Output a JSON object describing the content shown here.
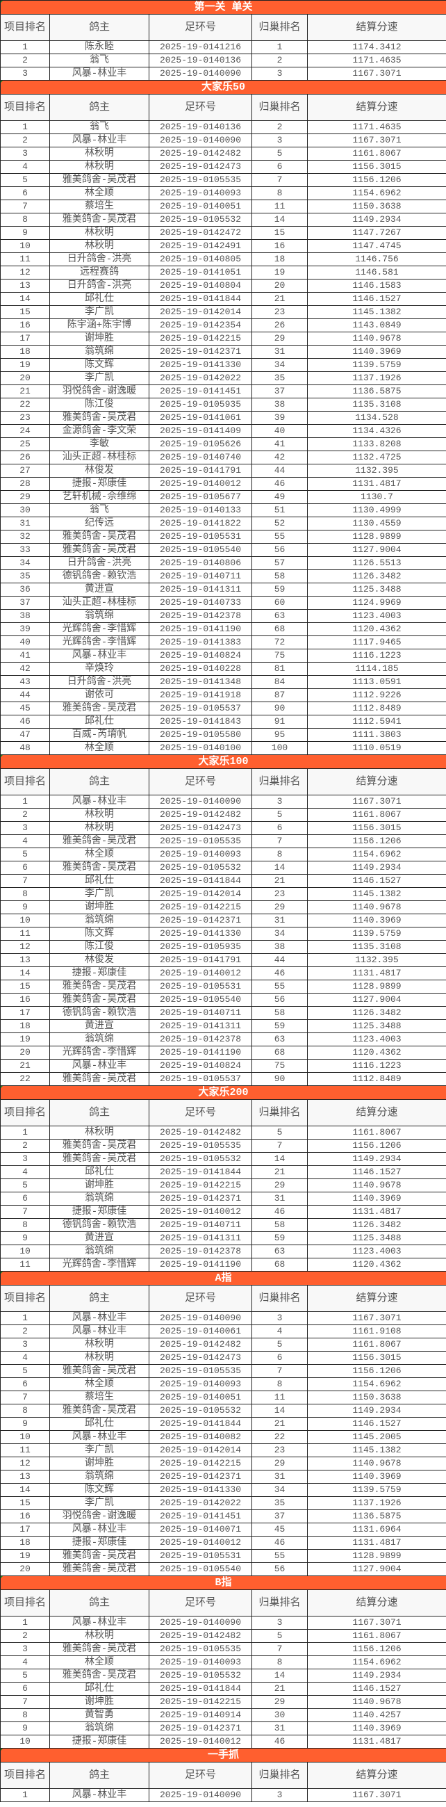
{
  "headers": [
    "项目排名",
    "鸽主",
    "足环号",
    "归巢排名",
    "结算分速"
  ],
  "colors": {
    "section_bar": "#ff5f2f",
    "header_bg": "#f8f8f8",
    "text": "#555555"
  },
  "sections": [
    {
      "title": "第一关 单关",
      "rows": [
        [
          "1",
          "陈永睦",
          "2025-19-0141216",
          "1",
          "1174.3412"
        ],
        [
          "2",
          "翁飞",
          "2025-19-0140136",
          "2",
          "1171.4635"
        ],
        [
          "3",
          "风暴-林业丰",
          "2025-19-0140090",
          "3",
          "1167.3071"
        ]
      ]
    },
    {
      "title": "大家乐50",
      "rows": [
        [
          "1",
          "翁飞",
          "2025-19-0140136",
          "2",
          "1171.4635"
        ],
        [
          "2",
          "风暴-林业丰",
          "2025-19-0140090",
          "3",
          "1167.3071"
        ],
        [
          "3",
          "林秋明",
          "2025-19-0142482",
          "5",
          "1161.8067"
        ],
        [
          "4",
          "林秋明",
          "2025-19-0142473",
          "6",
          "1156.3015"
        ],
        [
          "5",
          "雅美鸽舍-吴茂君",
          "2025-19-0105535",
          "7",
          "1156.1206"
        ],
        [
          "6",
          "林全顺",
          "2025-19-0140093",
          "8",
          "1154.6962"
        ],
        [
          "7",
          "蔡培生",
          "2025-19-0140051",
          "11",
          "1150.3638"
        ],
        [
          "8",
          "雅美鸽舍-吴茂君",
          "2025-19-0105532",
          "14",
          "1149.2934"
        ],
        [
          "9",
          "林秋明",
          "2025-19-0142472",
          "15",
          "1147.7267"
        ],
        [
          "10",
          "林秋明",
          "2025-19-0142491",
          "16",
          "1147.4745"
        ],
        [
          "11",
          "日升鸽舍-洪亮",
          "2025-19-0140805",
          "18",
          "1146.756"
        ],
        [
          "12",
          "远程赛鸽",
          "2025-19-0141051",
          "19",
          "1146.581"
        ],
        [
          "13",
          "日升鸽舍-洪亮",
          "2025-19-0140804",
          "20",
          "1146.1583"
        ],
        [
          "14",
          "邱礼仕",
          "2025-19-0141844",
          "21",
          "1146.1527"
        ],
        [
          "15",
          "李广凯",
          "2025-19-0142014",
          "23",
          "1145.1382"
        ],
        [
          "16",
          "陈宇涵+陈宇博",
          "2025-19-0142354",
          "26",
          "1143.0849"
        ],
        [
          "17",
          "谢坤胜",
          "2025-19-0142215",
          "29",
          "1140.9678"
        ],
        [
          "18",
          "翁筑绵",
          "2025-19-0142371",
          "31",
          "1140.3969"
        ],
        [
          "19",
          "陈文辉",
          "2025-19-0141330",
          "34",
          "1139.5759"
        ],
        [
          "20",
          "李广凯",
          "2025-19-0142022",
          "35",
          "1137.1926"
        ],
        [
          "21",
          "羽悦鸽舍-谢逸暖",
          "2025-19-0141451",
          "37",
          "1136.5875"
        ],
        [
          "22",
          "陈江俊",
          "2025-19-0105935",
          "38",
          "1135.3108"
        ],
        [
          "23",
          "雅美鸽舍-吴茂君",
          "2025-19-0141061",
          "39",
          "1134.528"
        ],
        [
          "24",
          "金源鸽舍-李文荣",
          "2025-19-0141409",
          "40",
          "1134.4326"
        ],
        [
          "25",
          "李敏",
          "2025-19-0105626",
          "41",
          "1133.8208"
        ],
        [
          "26",
          "汕头正超-林桂标",
          "2025-19-0140740",
          "42",
          "1132.4725"
        ],
        [
          "27",
          "林俊发",
          "2025-19-0141791",
          "44",
          "1132.395"
        ],
        [
          "28",
          "捷报-郑康佳",
          "2025-19-0140012",
          "46",
          "1131.4817"
        ],
        [
          "29",
          "艺轩机械-佘维绵",
          "2025-19-0105677",
          "49",
          "1130.7"
        ],
        [
          "30",
          "翁飞",
          "2025-19-0140133",
          "51",
          "1130.4999"
        ],
        [
          "31",
          "纪传远",
          "2025-19-0141822",
          "52",
          "1130.4559"
        ],
        [
          "32",
          "雅美鸽舍-吴茂君",
          "2025-19-0105531",
          "55",
          "1128.9899"
        ],
        [
          "33",
          "雅美鸽舍-吴茂君",
          "2025-19-0105540",
          "56",
          "1127.9004"
        ],
        [
          "34",
          "日升鸽舍-洪亮",
          "2025-19-0140806",
          "57",
          "1126.5513"
        ],
        [
          "35",
          "德钒鸽舍-赖钦浩",
          "2025-19-0140711",
          "58",
          "1126.3482"
        ],
        [
          "36",
          "黄进宣",
          "2025-19-0141311",
          "59",
          "1125.3488"
        ],
        [
          "37",
          "汕头正超-林桂标",
          "2025-19-0140733",
          "60",
          "1124.9969"
        ],
        [
          "38",
          "翁筑绵",
          "2025-19-0142378",
          "63",
          "1123.4003"
        ],
        [
          "39",
          "光辉鸽舍-李惜辉",
          "2025-19-0141190",
          "68",
          "1120.4362"
        ],
        [
          "40",
          "光辉鸽舍-李惜辉",
          "2025-19-0141383",
          "72",
          "1117.9465"
        ],
        [
          "41",
          "风暴-林业丰",
          "2025-19-0140824",
          "75",
          "1116.1223"
        ],
        [
          "42",
          "辛焕玲",
          "2025-19-0140228",
          "81",
          "1114.185"
        ],
        [
          "43",
          "日升鸽舍-洪亮",
          "2025-19-0141348",
          "84",
          "1113.0591"
        ],
        [
          "44",
          "谢依可",
          "2025-19-0141918",
          "87",
          "1112.9226"
        ],
        [
          "45",
          "雅美鸽舍-吴茂君",
          "2025-19-0105537",
          "90",
          "1112.8489"
        ],
        [
          "46",
          "邱礼仕",
          "2025-19-0141843",
          "91",
          "1112.5941"
        ],
        [
          "47",
          "百威-芮堉帆",
          "2025-19-0105580",
          "95",
          "1111.3803"
        ],
        [
          "48",
          "林全顺",
          "2025-19-0140100",
          "100",
          "1110.0519"
        ]
      ]
    },
    {
      "title": "大家乐100",
      "rows": [
        [
          "1",
          "风暴-林业丰",
          "2025-19-0140090",
          "3",
          "1167.3071"
        ],
        [
          "2",
          "林秋明",
          "2025-19-0142482",
          "5",
          "1161.8067"
        ],
        [
          "3",
          "林秋明",
          "2025-19-0142473",
          "6",
          "1156.3015"
        ],
        [
          "4",
          "雅美鸽舍-吴茂君",
          "2025-19-0105535",
          "7",
          "1156.1206"
        ],
        [
          "5",
          "林全顺",
          "2025-19-0140093",
          "8",
          "1154.6962"
        ],
        [
          "6",
          "雅美鸽舍-吴茂君",
          "2025-19-0105532",
          "14",
          "1149.2934"
        ],
        [
          "7",
          "邱礼仕",
          "2025-19-0141844",
          "21",
          "1146.1527"
        ],
        [
          "8",
          "李广凯",
          "2025-19-0142014",
          "23",
          "1145.1382"
        ],
        [
          "9",
          "谢坤胜",
          "2025-19-0142215",
          "29",
          "1140.9678"
        ],
        [
          "10",
          "翁筑绵",
          "2025-19-0142371",
          "31",
          "1140.3969"
        ],
        [
          "11",
          "陈文辉",
          "2025-19-0141330",
          "34",
          "1139.5759"
        ],
        [
          "12",
          "陈江俊",
          "2025-19-0105935",
          "38",
          "1135.3108"
        ],
        [
          "13",
          "林俊发",
          "2025-19-0141791",
          "44",
          "1132.395"
        ],
        [
          "14",
          "捷报-郑康佳",
          "2025-19-0140012",
          "46",
          "1131.4817"
        ],
        [
          "15",
          "雅美鸽舍-吴茂君",
          "2025-19-0105531",
          "55",
          "1128.9899"
        ],
        [
          "16",
          "雅美鸽舍-吴茂君",
          "2025-19-0105540",
          "56",
          "1127.9004"
        ],
        [
          "17",
          "德钒鸽舍-赖钦浩",
          "2025-19-0140711",
          "58",
          "1126.3482"
        ],
        [
          "18",
          "黄进宣",
          "2025-19-0141311",
          "59",
          "1125.3488"
        ],
        [
          "19",
          "翁筑绵",
          "2025-19-0142378",
          "63",
          "1123.4003"
        ],
        [
          "20",
          "光辉鸽舍-李惜辉",
          "2025-19-0141190",
          "68",
          "1120.4362"
        ],
        [
          "21",
          "风暴-林业丰",
          "2025-19-0140824",
          "75",
          "1116.1223"
        ],
        [
          "22",
          "雅美鸽舍-吴茂君",
          "2025-19-0105537",
          "90",
          "1112.8489"
        ]
      ]
    },
    {
      "title": "大家乐200",
      "rows": [
        [
          "1",
          "林秋明",
          "2025-19-0142482",
          "5",
          "1161.8067"
        ],
        [
          "2",
          "雅美鸽舍-吴茂君",
          "2025-19-0105535",
          "7",
          "1156.1206"
        ],
        [
          "3",
          "雅美鸽舍-吴茂君",
          "2025-19-0105532",
          "14",
          "1149.2934"
        ],
        [
          "4",
          "邱礼仕",
          "2025-19-0141844",
          "21",
          "1146.1527"
        ],
        [
          "5",
          "谢坤胜",
          "2025-19-0142215",
          "29",
          "1140.9678"
        ],
        [
          "6",
          "翁筑绵",
          "2025-19-0142371",
          "31",
          "1140.3969"
        ],
        [
          "7",
          "捷报-郑康佳",
          "2025-19-0140012",
          "46",
          "1131.4817"
        ],
        [
          "8",
          "德钒鸽舍-赖钦浩",
          "2025-19-0140711",
          "58",
          "1126.3482"
        ],
        [
          "9",
          "黄进宣",
          "2025-19-0141311",
          "59",
          "1125.3488"
        ],
        [
          "10",
          "翁筑绵",
          "2025-19-0142378",
          "63",
          "1123.4003"
        ],
        [
          "11",
          "光辉鸽舍-李惜辉",
          "2025-19-0141190",
          "68",
          "1120.4362"
        ]
      ]
    },
    {
      "title": "A指",
      "rows": [
        [
          "1",
          "风暴-林业丰",
          "2025-19-0140090",
          "3",
          "1167.3071"
        ],
        [
          "2",
          "风暴-林业丰",
          "2025-19-0140061",
          "4",
          "1161.9108"
        ],
        [
          "3",
          "林秋明",
          "2025-19-0142482",
          "5",
          "1161.8067"
        ],
        [
          "4",
          "林秋明",
          "2025-19-0142473",
          "6",
          "1156.3015"
        ],
        [
          "5",
          "雅美鸽舍-吴茂君",
          "2025-19-0105535",
          "7",
          "1156.1206"
        ],
        [
          "6",
          "林全顺",
          "2025-19-0140093",
          "8",
          "1154.6962"
        ],
        [
          "7",
          "蔡培生",
          "2025-19-0140051",
          "11",
          "1150.3638"
        ],
        [
          "8",
          "雅美鸽舍-吴茂君",
          "2025-19-0105532",
          "14",
          "1149.2934"
        ],
        [
          "9",
          "邱礼仕",
          "2025-19-0141844",
          "21",
          "1146.1527"
        ],
        [
          "10",
          "风暴-林业丰",
          "2025-19-0140082",
          "22",
          "1145.2005"
        ],
        [
          "11",
          "李广凯",
          "2025-19-0142014",
          "23",
          "1145.1382"
        ],
        [
          "12",
          "谢坤胜",
          "2025-19-0142215",
          "29",
          "1140.9678"
        ],
        [
          "13",
          "翁筑绵",
          "2025-19-0142371",
          "31",
          "1140.3969"
        ],
        [
          "14",
          "陈文辉",
          "2025-19-0141330",
          "34",
          "1139.5759"
        ],
        [
          "15",
          "李广凯",
          "2025-19-0142022",
          "35",
          "1137.1926"
        ],
        [
          "16",
          "羽悦鸽舍-谢逸暖",
          "2025-19-0141451",
          "37",
          "1136.5875"
        ],
        [
          "17",
          "风暴-林业丰",
          "2025-19-0140071",
          "45",
          "1131.6964"
        ],
        [
          "18",
          "捷报-郑康佳",
          "2025-19-0140012",
          "46",
          "1131.4817"
        ],
        [
          "19",
          "雅美鸽舍-吴茂君",
          "2025-19-0105531",
          "55",
          "1128.9899"
        ],
        [
          "20",
          "雅美鸽舍-吴茂君",
          "2025-19-0105540",
          "56",
          "1127.9004"
        ]
      ]
    },
    {
      "title": "B指",
      "rows": [
        [
          "1",
          "风暴-林业丰",
          "2025-19-0140090",
          "3",
          "1167.3071"
        ],
        [
          "2",
          "林秋明",
          "2025-19-0142482",
          "5",
          "1161.8067"
        ],
        [
          "3",
          "雅美鸽舍-吴茂君",
          "2025-19-0105535",
          "7",
          "1156.1206"
        ],
        [
          "4",
          "林全顺",
          "2025-19-0140093",
          "8",
          "1154.6962"
        ],
        [
          "5",
          "雅美鸽舍-吴茂君",
          "2025-19-0105532",
          "14",
          "1149.2934"
        ],
        [
          "6",
          "邱礼仕",
          "2025-19-0141844",
          "21",
          "1146.1527"
        ],
        [
          "7",
          "谢坤胜",
          "2025-19-0142215",
          "29",
          "1140.9678"
        ],
        [
          "8",
          "黄智勇",
          "2025-19-0140914",
          "30",
          "1140.4257"
        ],
        [
          "9",
          "翁筑绵",
          "2025-19-0142371",
          "31",
          "1140.3969"
        ],
        [
          "10",
          "捷报-郑康佳",
          "2025-19-0140012",
          "46",
          "1131.4817"
        ]
      ]
    },
    {
      "title": "一手抓",
      "rows": [
        [
          "1",
          "风暴-林业丰",
          "2025-19-0140090",
          "3",
          "1167.3071"
        ]
      ]
    }
  ]
}
